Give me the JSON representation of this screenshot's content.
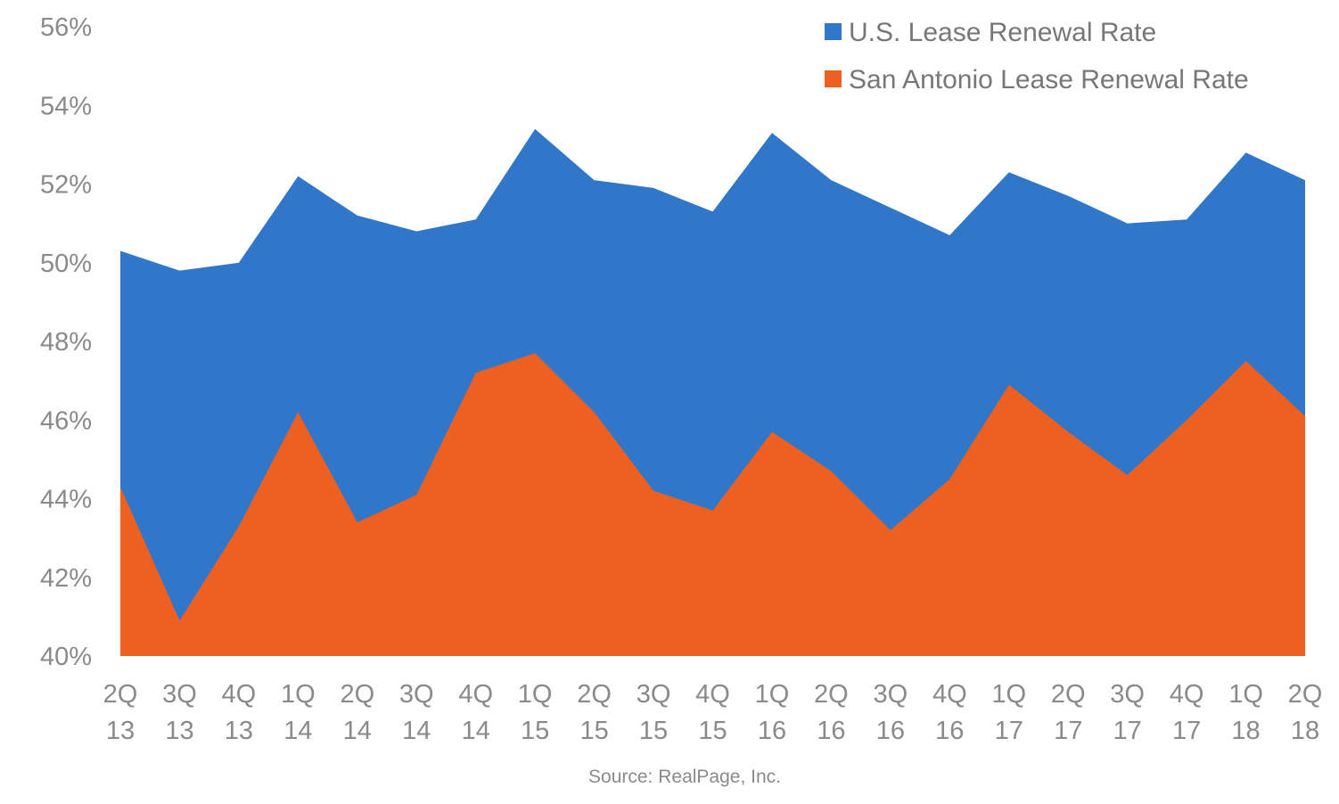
{
  "chart_data": {
    "type": "area",
    "categories": [
      [
        "2Q",
        "13"
      ],
      [
        "3Q",
        "13"
      ],
      [
        "4Q",
        "13"
      ],
      [
        "1Q",
        "14"
      ],
      [
        "2Q",
        "14"
      ],
      [
        "3Q",
        "14"
      ],
      [
        "4Q",
        "14"
      ],
      [
        "1Q",
        "15"
      ],
      [
        "2Q",
        "15"
      ],
      [
        "3Q",
        "15"
      ],
      [
        "4Q",
        "15"
      ],
      [
        "1Q",
        "16"
      ],
      [
        "2Q",
        "16"
      ],
      [
        "3Q",
        "16"
      ],
      [
        "4Q",
        "16"
      ],
      [
        "1Q",
        "17"
      ],
      [
        "2Q",
        "17"
      ],
      [
        "3Q",
        "17"
      ],
      [
        "4Q",
        "17"
      ],
      [
        "1Q",
        "18"
      ],
      [
        "2Q",
        "18"
      ]
    ],
    "series": [
      {
        "name": "U.S. Lease Renewal Rate",
        "color": "#3077c9",
        "values": [
          50.3,
          49.8,
          50.0,
          52.2,
          51.2,
          50.8,
          51.1,
          53.4,
          52.1,
          51.9,
          51.3,
          53.3,
          52.1,
          51.4,
          50.7,
          52.3,
          51.7,
          51.0,
          51.1,
          52.8,
          52.1
        ]
      },
      {
        "name": "San Antonio Lease Renewal Rate",
        "color": "#ee6020",
        "values": [
          44.3,
          40.9,
          43.3,
          46.2,
          43.4,
          44.1,
          47.2,
          47.7,
          46.2,
          44.2,
          43.7,
          45.7,
          44.7,
          43.2,
          44.5,
          46.9,
          45.7,
          44.6,
          46.0,
          47.5,
          46.1
        ]
      }
    ],
    "ylim": [
      40,
      56
    ],
    "yticks": [
      40,
      42,
      44,
      46,
      48,
      50,
      52,
      54,
      56
    ],
    "ytick_suffix": "%",
    "xlabel": "",
    "ylabel": "",
    "legend_position": "top-right",
    "grid": false
  },
  "source": "Source: RealPage, Inc."
}
